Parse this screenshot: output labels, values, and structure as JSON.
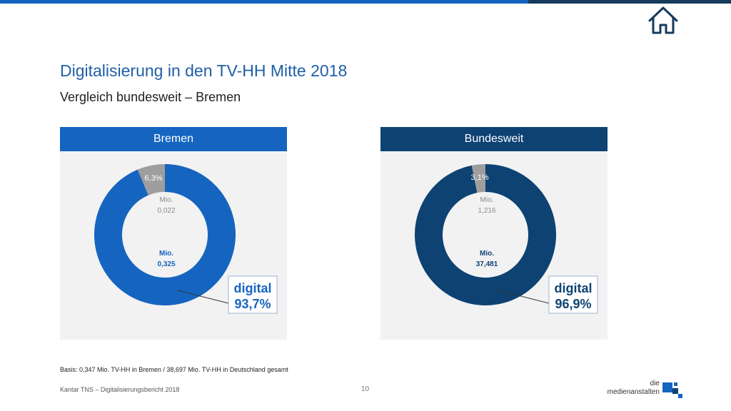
{
  "header": {
    "title": "Digitalisierung in den TV-HH Mitte 2018",
    "subtitle": "Vergleich bundesweit  – Bremen"
  },
  "colors": {
    "accent": "#1565c0",
    "dark_accent": "#0d4273",
    "non_digital": "#9e9e9e",
    "panel_bg": "#f2f2f2"
  },
  "icons": {
    "home": "home-icon"
  },
  "chart_data": [
    {
      "type": "pie",
      "title": "Bremen",
      "slices": [
        {
          "label": "digital",
          "value": 93.7,
          "value_label": "93,7%",
          "sub_label": [
            "Mio.",
            "0,325"
          ],
          "color": "#1565c0"
        },
        {
          "label": "",
          "value": 6.3,
          "value_label": "6,3%",
          "sub_label": [
            "Mio.",
            "0,022"
          ],
          "color": "#9e9e9e"
        }
      ]
    },
    {
      "type": "pie",
      "title": "Bundesweit",
      "slices": [
        {
          "label": "digital",
          "value": 96.9,
          "value_label": "96,9%",
          "sub_label": [
            "Mio.",
            "37,481"
          ],
          "color": "#0d4273"
        },
        {
          "label": "",
          "value": 3.1,
          "value_label": "3,1%",
          "sub_label": [
            "Mio.",
            "1,216"
          ],
          "color": "#9e9e9e"
        }
      ]
    }
  ],
  "footer": {
    "basis": "Basis: 0,347 Mio. TV-HH in Bremen / 38,697 Mio. TV-HH in Deutschland gesamt",
    "source": "Kantar TNS – Digitalisierungsbericht 2018",
    "page": "10",
    "brand_line1": "die",
    "brand_line2": "medienanstalten"
  }
}
